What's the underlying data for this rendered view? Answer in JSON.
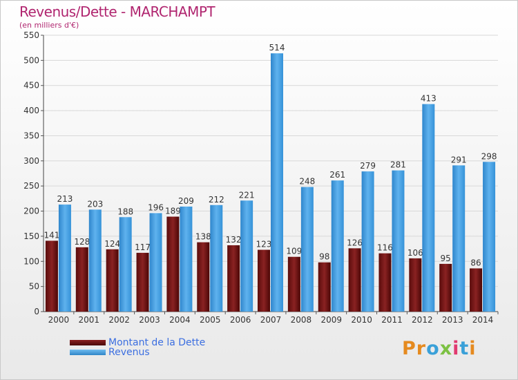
{
  "title": "Revenus/Dette - MARCHAMPT",
  "subtitle": "(en milliers d'€)",
  "chart_data": {
    "type": "bar",
    "categories": [
      "2000",
      "2001",
      "2002",
      "2003",
      "2004",
      "2005",
      "2006",
      "2007",
      "2008",
      "2009",
      "2010",
      "2011",
      "2012",
      "2013",
      "2014"
    ],
    "series": [
      {
        "name": "Montant de la Dette",
        "values": [
          141,
          128,
          124,
          117,
          189,
          138,
          132,
          123,
          109,
          98,
          126,
          116,
          106,
          95,
          86
        ],
        "color": "#7a1616"
      },
      {
        "name": "Revenus",
        "values": [
          213,
          203,
          188,
          196,
          209,
          212,
          221,
          514,
          248,
          261,
          279,
          281,
          413,
          291,
          298
        ],
        "color": "#4aa3e6"
      }
    ],
    "ylim": [
      0,
      550
    ],
    "yticks": [
      0,
      50,
      100,
      150,
      200,
      250,
      300,
      350,
      400,
      450,
      500,
      550
    ],
    "grid": true,
    "legend": "bottom-left"
  },
  "legend": [
    {
      "label": "Montant de la Dette",
      "color": "#7a1616"
    },
    {
      "label": "Revenus",
      "color": "#4aa3e6"
    }
  ],
  "brand": {
    "text": "Proxiti",
    "colors": [
      "#e58a1f",
      "#e58a1f",
      "#3aa0d8",
      "#7cc143",
      "#e03a6f",
      "#3aa0d8",
      "#e58a1f"
    ]
  }
}
